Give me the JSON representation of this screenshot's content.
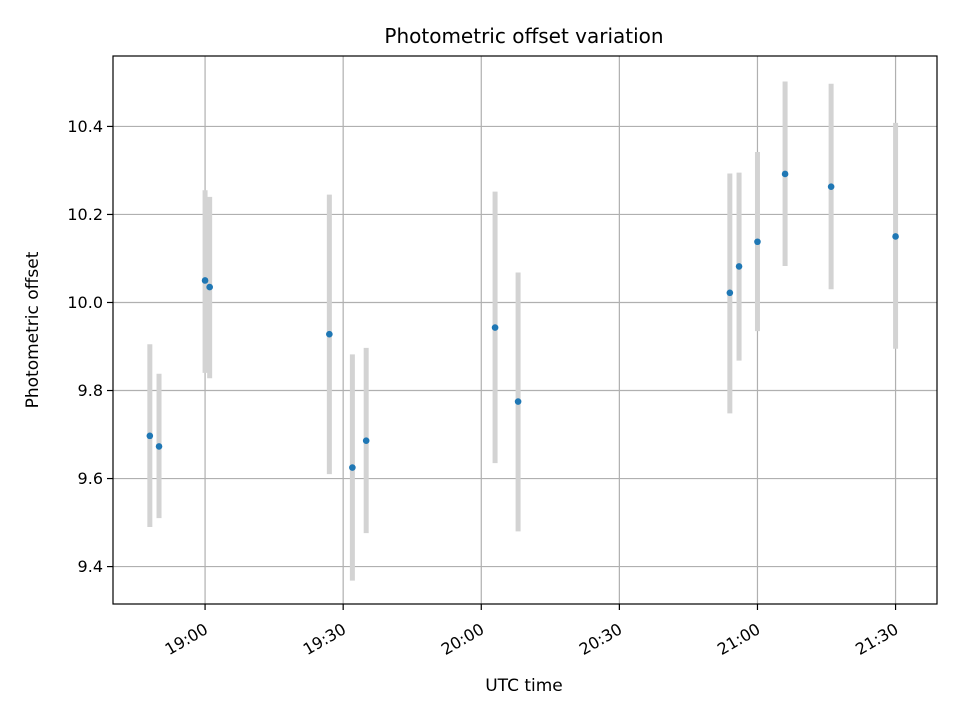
{
  "chart_data": {
    "type": "scatter",
    "title": "Photometric offset variation",
    "xlabel": "UTC time",
    "ylabel": "Photometric offset",
    "x_ticks": [
      "19:00",
      "19:30",
      "20:00",
      "20:30",
      "21:00",
      "21:30"
    ],
    "y_ticks": [
      "9.4",
      "9.6",
      "9.8",
      "10.0",
      "10.2",
      "10.4"
    ],
    "xlim": [
      "18:40",
      "21:39"
    ],
    "ylim": [
      9.315,
      10.56
    ],
    "grid": true,
    "errorbar_color": "#d3d3d3",
    "point_color": "#1f77b4",
    "points": [
      {
        "x": "18:48",
        "y": 9.697,
        "yerr_low": 9.49,
        "yerr_high": 9.905
      },
      {
        "x": "18:50",
        "y": 9.673,
        "yerr_low": 9.51,
        "yerr_high": 9.838
      },
      {
        "x": "19:00",
        "y": 10.05,
        "yerr_low": 9.84,
        "yerr_high": 10.255
      },
      {
        "x": "19:01",
        "y": 10.035,
        "yerr_low": 9.828,
        "yerr_high": 10.24
      },
      {
        "x": "19:27",
        "y": 9.928,
        "yerr_low": 9.61,
        "yerr_high": 10.245
      },
      {
        "x": "19:32",
        "y": 9.625,
        "yerr_low": 9.368,
        "yerr_high": 9.882
      },
      {
        "x": "19:35",
        "y": 9.686,
        "yerr_low": 9.476,
        "yerr_high": 9.897
      },
      {
        "x": "20:03",
        "y": 9.943,
        "yerr_low": 9.635,
        "yerr_high": 10.252
      },
      {
        "x": "20:08",
        "y": 9.775,
        "yerr_low": 9.48,
        "yerr_high": 10.068
      },
      {
        "x": "20:54",
        "y": 10.022,
        "yerr_low": 9.748,
        "yerr_high": 10.293
      },
      {
        "x": "20:56",
        "y": 10.082,
        "yerr_low": 9.868,
        "yerr_high": 10.295
      },
      {
        "x": "21:00",
        "y": 10.138,
        "yerr_low": 9.935,
        "yerr_high": 10.342
      },
      {
        "x": "21:06",
        "y": 10.292,
        "yerr_low": 10.083,
        "yerr_high": 10.502
      },
      {
        "x": "21:16",
        "y": 10.263,
        "yerr_low": 10.03,
        "yerr_high": 10.497
      },
      {
        "x": "21:30",
        "y": 10.15,
        "yerr_low": 9.895,
        "yerr_high": 10.408
      }
    ]
  }
}
